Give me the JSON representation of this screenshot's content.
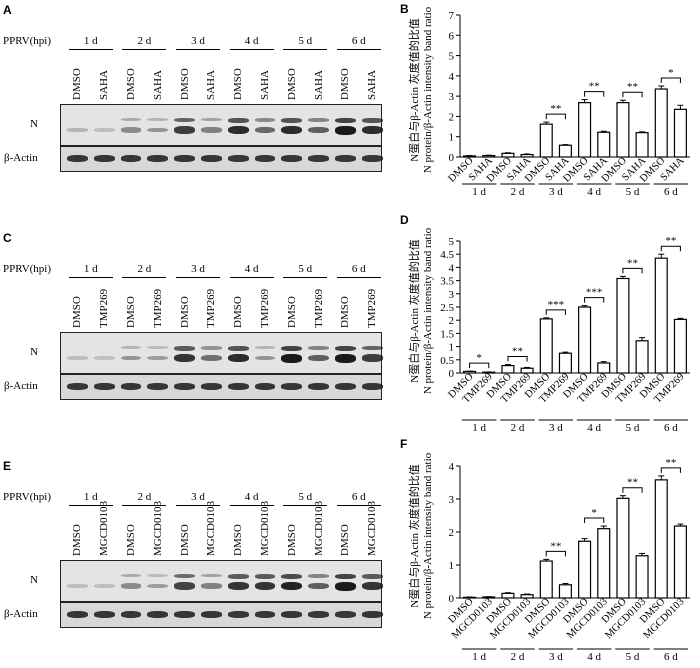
{
  "panels": {
    "A": {
      "label": "A",
      "row_header": "PPRV(hpi)",
      "treatments": [
        "DMSO",
        "SAHA"
      ]
    },
    "C": {
      "label": "C",
      "row_header": "PPRV(hpi)",
      "treatments": [
        "DMSO",
        "TMP269"
      ]
    },
    "E": {
      "label": "E",
      "row_header": "PPRV(hpi)",
      "treatments": [
        "DMSO",
        "MGCD0103"
      ]
    }
  },
  "days": [
    "1 d",
    "2 d",
    "3 d",
    "4 d",
    "5 d",
    "6 d"
  ],
  "blot_labels": {
    "n": "N",
    "actin": "β-Actin"
  },
  "chart_data": [
    {
      "panel": "B",
      "type": "bar",
      "ylabel_cn": "N蛋白与β-Actin 灰度值的比值",
      "ylabel_en": "N protein/β-Actin intensity band ratio",
      "ylim": [
        0,
        7
      ],
      "yticks": [
        0,
        1,
        2,
        3,
        4,
        5,
        6,
        7
      ],
      "categories": [
        "DMSO",
        "SAHA",
        "DMSO",
        "SAHA",
        "DMSO",
        "SAHA",
        "DMSO",
        "SAHA",
        "DMSO",
        "SAHA",
        "DMSO",
        "SAHA"
      ],
      "groups": [
        "1 d",
        "2 d",
        "3 d",
        "4 d",
        "5 d",
        "6 d"
      ],
      "values": [
        0.05,
        0.07,
        0.18,
        0.12,
        1.62,
        0.58,
        2.68,
        1.22,
        2.68,
        1.2,
        3.35,
        2.35
      ],
      "errors": [
        0.02,
        0.02,
        0.03,
        0.03,
        0.1,
        0.03,
        0.15,
        0.05,
        0.12,
        0.04,
        0.15,
        0.2
      ],
      "significance": [
        {
          "groupIndex": 2,
          "label": "**"
        },
        {
          "groupIndex": 3,
          "label": "**"
        },
        {
          "groupIndex": 4,
          "label": "**"
        },
        {
          "groupIndex": 5,
          "label": "*"
        }
      ]
    },
    {
      "panel": "D",
      "type": "bar",
      "ylabel_cn": "N蛋白与β-Actin 灰度值的比值",
      "ylabel_en": "N protein/β-Actin intensity band ratio",
      "ylim": [
        0,
        5
      ],
      "yticks": [
        0,
        0.5,
        1,
        1.5,
        2,
        2.5,
        3,
        3.5,
        4,
        4.5,
        5
      ],
      "categories": [
        "DMSO",
        "TMP269",
        "DMSO",
        "TMP269",
        "DMSO",
        "TMP269",
        "DMSO",
        "TMP269",
        "DMSO",
        "TMP269",
        "DMSO",
        "TMP269"
      ],
      "groups": [
        "1 d",
        "2 d",
        "3 d",
        "4 d",
        "5 d",
        "6 d"
      ],
      "values": [
        0.06,
        0.03,
        0.28,
        0.18,
        2.05,
        0.75,
        2.5,
        0.38,
        3.58,
        1.22,
        4.35,
        2.03
      ],
      "errors": [
        0.01,
        0.01,
        0.04,
        0.03,
        0.04,
        0.04,
        0.05,
        0.05,
        0.08,
        0.12,
        0.15,
        0.04
      ],
      "significance": [
        {
          "groupIndex": 0,
          "label": "*"
        },
        {
          "groupIndex": 1,
          "label": "**"
        },
        {
          "groupIndex": 2,
          "label": "***"
        },
        {
          "groupIndex": 3,
          "label": "***"
        },
        {
          "groupIndex": 4,
          "label": "**"
        },
        {
          "groupIndex": 5,
          "label": "**"
        }
      ]
    },
    {
      "panel": "F",
      "type": "bar",
      "ylabel_cn": "N蛋白与β-Actin 灰度值的比值",
      "ylabel_en": "N protein/β-Actin intensity band ratio",
      "ylim": [
        0,
        4
      ],
      "yticks": [
        0,
        1,
        2,
        3,
        4
      ],
      "categories": [
        "DMSO",
        "MGCD0103",
        "DMSO",
        "MGCD0103",
        "DMSO",
        "MGCD0103",
        "DMSO",
        "MGCD0103",
        "DMSO",
        "MGCD0103",
        "DMSO",
        "MGCD0103"
      ],
      "groups": [
        "1 d",
        "2 d",
        "3 d",
        "4 d",
        "5 d",
        "6 d"
      ],
      "values": [
        0.02,
        0.03,
        0.14,
        0.1,
        1.12,
        0.4,
        1.72,
        2.1,
        3.02,
        1.28,
        3.58,
        2.18
      ],
      "errors": [
        0.01,
        0.01,
        0.02,
        0.02,
        0.05,
        0.04,
        0.08,
        0.08,
        0.08,
        0.07,
        0.12,
        0.06
      ],
      "significance": [
        {
          "groupIndex": 2,
          "label": "**"
        },
        {
          "groupIndex": 3,
          "label": "*"
        },
        {
          "groupIndex": 4,
          "label": "**"
        },
        {
          "groupIndex": 5,
          "label": "**"
        }
      ]
    }
  ]
}
